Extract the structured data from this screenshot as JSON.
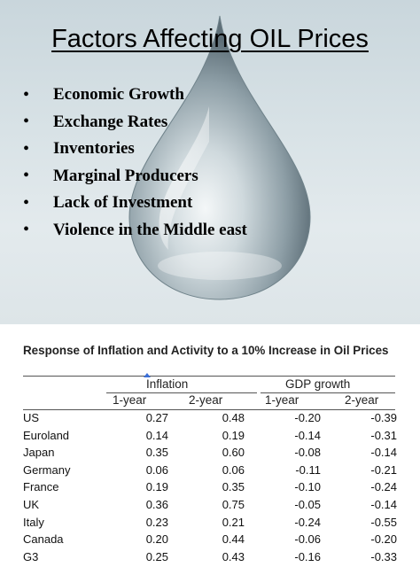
{
  "slide": {
    "title": "Factors Affecting OIL Prices",
    "bullet_symbol": "•",
    "bullets": [
      "Economic Growth",
      "Exchange Rates",
      "Inventories",
      "Marginal Producers",
      "Lack of Investment",
      "Violence in the Middle east"
    ]
  },
  "table": {
    "title": "Response of Inflation and Activity to a 10% Increase in Oil Prices",
    "groups": [
      "Inflation",
      "GDP growth"
    ],
    "subheaders": [
      "1-year",
      "2-year",
      "1-year",
      "2-year"
    ],
    "rows": [
      {
        "country": "US",
        "values": [
          "0.27",
          "0.48",
          "-0.20",
          "-0.39"
        ]
      },
      {
        "country": "Euroland",
        "values": [
          "0.14",
          "0.19",
          "-0.14",
          "-0.31"
        ]
      },
      {
        "country": "Japan",
        "values": [
          "0.35",
          "0.60",
          "-0.08",
          "-0.14"
        ]
      },
      {
        "country": "Germany",
        "values": [
          "0.06",
          "0.06",
          "-0.11",
          "-0.21"
        ]
      },
      {
        "country": "France",
        "values": [
          "0.19",
          "0.35",
          "-0.10",
          "-0.24"
        ]
      },
      {
        "country": "UK",
        "values": [
          "0.36",
          "0.75",
          "-0.05",
          "-0.14"
        ]
      },
      {
        "country": "Italy",
        "values": [
          "0.23",
          "0.21",
          "-0.24",
          "-0.55"
        ]
      },
      {
        "country": "Canada",
        "values": [
          "0.20",
          "0.44",
          "-0.06",
          "-0.20"
        ]
      },
      {
        "country": "G3",
        "values": [
          "0.25",
          "0.43",
          "-0.16",
          "-0.33"
        ]
      }
    ]
  }
}
